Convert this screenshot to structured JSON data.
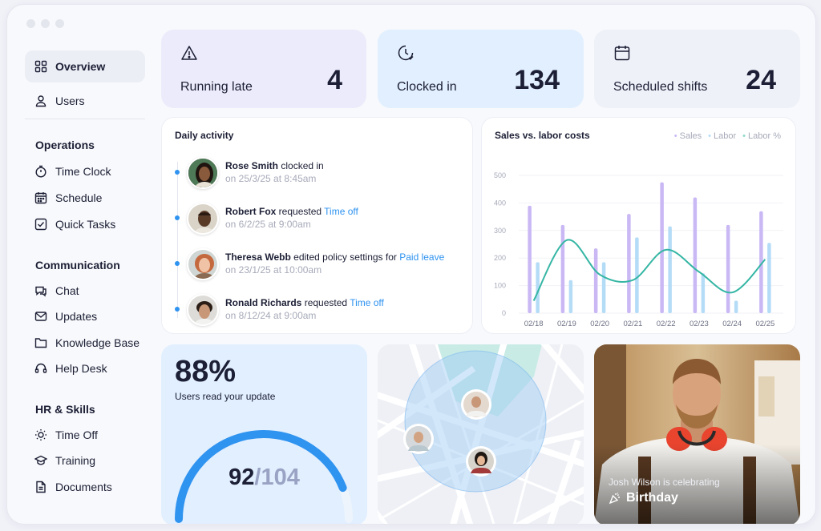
{
  "sidebar": {
    "top_items": [
      {
        "label": "Overview",
        "icon": "grid-icon"
      },
      {
        "label": "Users",
        "icon": "user-icon"
      }
    ],
    "groups": [
      {
        "title": "Operations",
        "items": [
          {
            "label": "Time Clock",
            "icon": "stopwatch-icon"
          },
          {
            "label": "Schedule",
            "icon": "calendar-icon"
          },
          {
            "label": "Quick Tasks",
            "icon": "checkbox-icon"
          }
        ]
      },
      {
        "title": "Communication",
        "items": [
          {
            "label": "Chat",
            "icon": "chat-icon"
          },
          {
            "label": "Updates",
            "icon": "mail-icon"
          },
          {
            "label": "Knowledge Base",
            "icon": "folder-icon"
          },
          {
            "label": "Help Desk",
            "icon": "headset-icon"
          }
        ]
      },
      {
        "title": "HR & Skills",
        "items": [
          {
            "label": "Time Off",
            "icon": "sun-icon"
          },
          {
            "label": "Training",
            "icon": "graduation-cap-icon"
          },
          {
            "label": "Documents",
            "icon": "document-icon"
          }
        ]
      }
    ]
  },
  "stats": [
    {
      "label": "Running late",
      "value": "4",
      "icon": "warning-triangle-icon",
      "bg": "#ecebfb"
    },
    {
      "label": "Clocked in",
      "value": "134",
      "icon": "clock-check-icon",
      "bg": "#e1efff"
    },
    {
      "label": "Scheduled shifts",
      "value": "24",
      "icon": "calendar-icon",
      "bg": "#eff1f9"
    }
  ],
  "activity": {
    "title": "Daily activity",
    "items": [
      {
        "name": "Rose Smith",
        "action": " clocked in",
        "link": "",
        "time": "on 25/3/25 at 8:45am"
      },
      {
        "name": "Robert Fox",
        "action": " requested ",
        "link": "Time off",
        "time": "on 6/2/25 at 9:00am"
      },
      {
        "name": "Theresa Webb",
        "action": " edited policy settings for ",
        "link": "Paid leave",
        "time": "on 23/1/25 at 10:00am"
      },
      {
        "name": "Ronald Richards",
        "action": " requested ",
        "link": "Time off",
        "time": "on 8/12/24 at 9:00am"
      }
    ]
  },
  "chart_data": {
    "type": "bar",
    "title": "Sales vs. labor costs",
    "categories": [
      "02/18",
      "02/19",
      "02/20",
      "02/21",
      "02/22",
      "02/23",
      "02/24",
      "02/25"
    ],
    "series": [
      {
        "name": "Sales",
        "values": [
          390,
          320,
          235,
          360,
          475,
          420,
          320,
          370
        ],
        "color": "#c9b8f4"
      },
      {
        "name": "Labor",
        "values": [
          185,
          120,
          185,
          275,
          315,
          145,
          45,
          255
        ],
        "color": "#b4dcf7"
      },
      {
        "name": "Labor %",
        "values": [
          45,
          265,
          140,
          120,
          230,
          150,
          75,
          195
        ],
        "color": "#35b6a4",
        "style": "smooth-line"
      }
    ],
    "yticks": [
      0,
      100,
      200,
      300,
      400,
      500
    ],
    "ylim": [
      0,
      500
    ],
    "grid": true,
    "legend": "top-right"
  },
  "read_update": {
    "percent": "88%",
    "subtitle": "Users read your update",
    "read": "92",
    "total": "/104",
    "fraction": 0.88
  },
  "birthday": {
    "pre": "Josh Wilson is celebrating",
    "main": "Birthday",
    "icon": "party-popper-icon"
  }
}
